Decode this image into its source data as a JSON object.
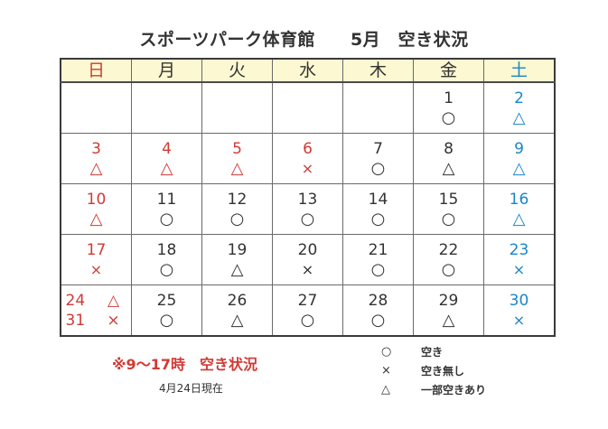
{
  "title": "スポーツパーク体育館　　5月　空き状況",
  "weekdays": [
    {
      "label": "日",
      "type": "sun"
    },
    {
      "label": "月",
      "type": "weekday"
    },
    {
      "label": "火",
      "type": "weekday"
    },
    {
      "label": "水",
      "type": "weekday"
    },
    {
      "label": "木",
      "type": "weekday"
    },
    {
      "label": "金",
      "type": "weekday"
    },
    {
      "label": "土",
      "type": "sat"
    }
  ],
  "colors": {
    "sunday_holiday": "#cf3b36",
    "saturday": "#1a86c8",
    "text": "#333333",
    "header_bg": "#fbf8d2",
    "note": "#d03a34"
  },
  "symbols": {
    "available": "○",
    "full": "×",
    "partial": "△"
  },
  "weeks": [
    [
      {
        "day": "",
        "mark": "",
        "color": "sun"
      },
      {
        "day": "",
        "mark": ""
      },
      {
        "day": "",
        "mark": ""
      },
      {
        "day": "",
        "mark": ""
      },
      {
        "day": "",
        "mark": ""
      },
      {
        "day": "1",
        "mark": "○"
      },
      {
        "day": "2",
        "mark": "△",
        "color": "sat"
      }
    ],
    [
      {
        "day": "3",
        "mark": "△",
        "color": "sun"
      },
      {
        "day": "4",
        "mark": "△",
        "color": "sun"
      },
      {
        "day": "5",
        "mark": "△",
        "color": "sun"
      },
      {
        "day": "6",
        "mark": "×",
        "color": "sun"
      },
      {
        "day": "7",
        "mark": "○"
      },
      {
        "day": "8",
        "mark": "△"
      },
      {
        "day": "9",
        "mark": "△",
        "color": "sat"
      }
    ],
    [
      {
        "day": "10",
        "mark": "△",
        "color": "sun"
      },
      {
        "day": "11",
        "mark": "○"
      },
      {
        "day": "12",
        "mark": "○"
      },
      {
        "day": "13",
        "mark": "○"
      },
      {
        "day": "14",
        "mark": "○"
      },
      {
        "day": "15",
        "mark": "○"
      },
      {
        "day": "16",
        "mark": "△",
        "color": "sat"
      }
    ],
    [
      {
        "day": "17",
        "mark": "×",
        "color": "sun"
      },
      {
        "day": "18",
        "mark": "○"
      },
      {
        "day": "19",
        "mark": "△"
      },
      {
        "day": "20",
        "mark": "×"
      },
      {
        "day": "21",
        "mark": "○"
      },
      {
        "day": "22",
        "mark": "○"
      },
      {
        "day": "23",
        "mark": "×",
        "color": "sat"
      }
    ],
    [
      {
        "split": [
          {
            "day": "24",
            "mark": "△"
          },
          {
            "day": "31",
            "mark": "×"
          }
        ],
        "color": "sun"
      },
      {
        "day": "25",
        "mark": "○"
      },
      {
        "day": "26",
        "mark": "△"
      },
      {
        "day": "27",
        "mark": "○"
      },
      {
        "day": "28",
        "mark": "○"
      },
      {
        "day": "29",
        "mark": "△"
      },
      {
        "day": "30",
        "mark": "×",
        "color": "sat"
      }
    ]
  ],
  "footer": {
    "note": "※9～17時　空き状況",
    "as_of": "4月24日現在"
  },
  "legend": [
    {
      "symbol": "○",
      "label": "空き"
    },
    {
      "symbol": "×",
      "label": "空き無し"
    },
    {
      "symbol": "△",
      "label": "一部空きあり"
    }
  ]
}
